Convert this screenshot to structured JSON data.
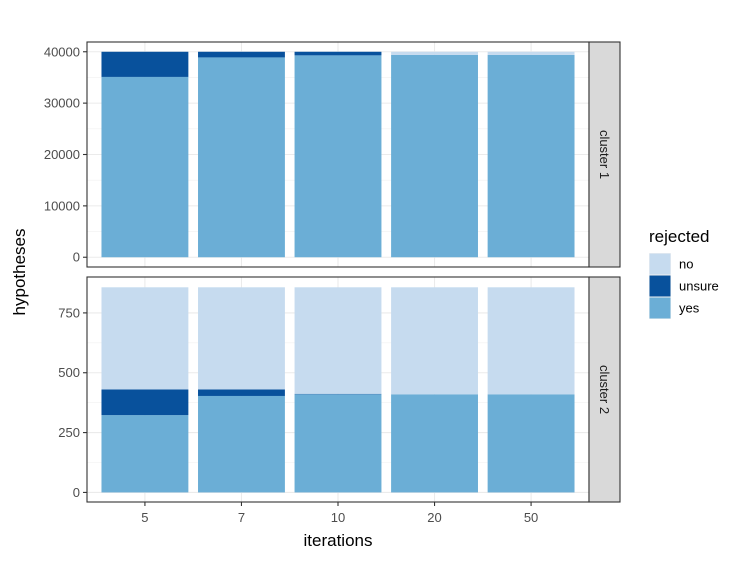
{
  "chart_data": {
    "type": "bar",
    "stacked": true,
    "xlabel": "iterations",
    "ylabel": "hypotheses",
    "categories": [
      "5",
      "7",
      "10",
      "20",
      "50"
    ],
    "stack_order": [
      "yes",
      "unsure",
      "no"
    ],
    "legend": {
      "title": "rejected",
      "placement": "right",
      "entries": [
        {
          "key": "no",
          "label": "no",
          "color": "#c6dbef"
        },
        {
          "key": "unsure",
          "label": "unsure",
          "color": "#08519c"
        },
        {
          "key": "yes",
          "label": "yes",
          "color": "#6baed6"
        }
      ]
    },
    "grid": true,
    "facets": [
      {
        "label": "cluster 1",
        "ylim": [
          -1900,
          41900
        ],
        "yticks": [
          0,
          10000,
          20000,
          30000,
          40000
        ],
        "ytick_labels": [
          "0",
          "10000",
          "20000",
          "30000",
          "40000"
        ],
        "series": [
          {
            "name": "yes",
            "values": [
              35100,
              38900,
              39300,
              39400,
              39400
            ]
          },
          {
            "name": "unsure",
            "values": [
              4900,
              1100,
              700,
              0,
              0
            ]
          },
          {
            "name": "no",
            "values": [
              0,
              0,
              0,
              600,
              600
            ]
          }
        ]
      },
      {
        "label": "cluster 2",
        "ylim": [
          -40,
          900
        ],
        "yticks": [
          0,
          250,
          500,
          750
        ],
        "ytick_labels": [
          "0",
          "250",
          "500",
          "750"
        ],
        "series": [
          {
            "name": "yes",
            "values": [
              323,
              403,
              410,
              410,
              410
            ]
          },
          {
            "name": "unsure",
            "values": [
              107,
              27,
              2,
              0,
              0
            ]
          },
          {
            "name": "no",
            "values": [
              427,
              427,
              445,
              447,
              447
            ]
          }
        ]
      }
    ]
  }
}
